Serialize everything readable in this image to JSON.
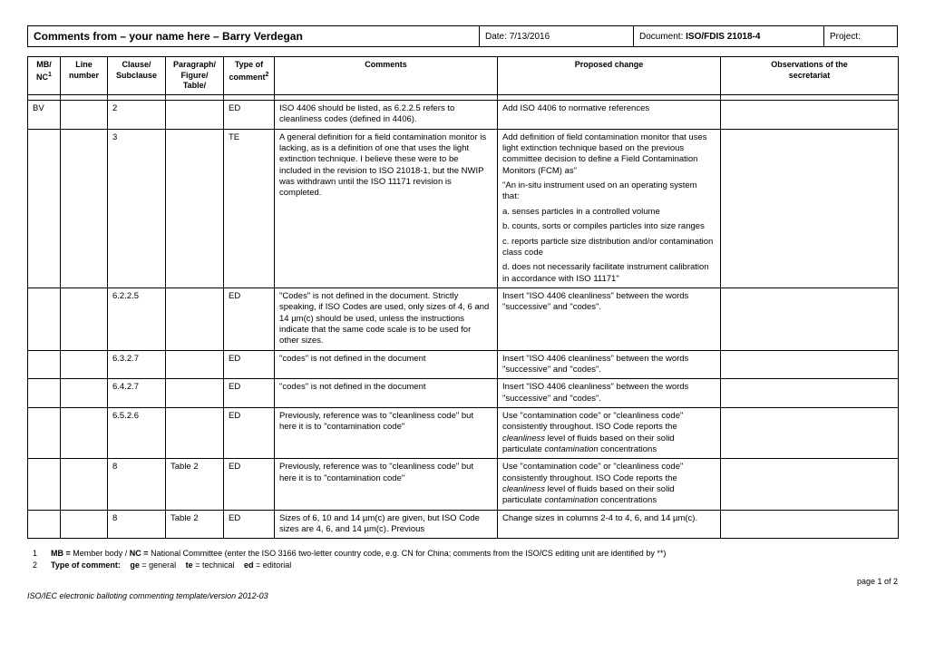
{
  "header": {
    "name_label": "Comments from – your name here – Barry Verdegan",
    "date_label": "Date: ",
    "date_value": "7/13/2016",
    "doc_label": "Document: ",
    "doc_value": "ISO/FDIS 21018-4",
    "project_label": "Project:"
  },
  "columns": {
    "mb": "MB/\nNC",
    "mb_sup": "1",
    "line": "Line number",
    "clause": "Clause/\nSubclause",
    "para": "Paragraph/\nFigure/\nTable/",
    "type": "Type of comment",
    "type_sup": "2",
    "comments": "Comments",
    "proposed": "Proposed change",
    "obs": "Observations of the secretariat"
  },
  "rows": [
    {
      "mb": "BV",
      "line": "",
      "clause": "2",
      "para": "",
      "type": "ED",
      "comment": "ISO 4406 should be listed, as 6.2.2.5 refers to cleanliness codes (defined in 4406).",
      "proposed": "Add ISO 4406 to normative references",
      "obs": ""
    },
    {
      "mb": "",
      "line": "",
      "clause": "3",
      "para": "",
      "type": "TE",
      "comment": "A general definition for a field contamination monitor is lacking, as is a definition of one that uses the light extinction technique.  I believe these were to be included in the revision to ISO 21018-1, but the NWIP was withdrawn until the ISO 11171 revision is completed.",
      "proposed_parts": [
        "Add definition of field contamination monitor that uses light extinction technique based on the previous committee decision to define  a Field Contamination Monitors (FCM) as\"",
        "\"An in-situ instrument used on an operating system that:",
        "a. senses particles in a controlled volume",
        "b. counts, sorts or compiles particles into size ranges",
        "c. reports particle size distribution and/or contamination class code",
        "d. does not necessarily facilitate instrument calibration in accordance with ISO 11171\""
      ],
      "obs": ""
    },
    {
      "mb": "",
      "line": "",
      "clause": "6.2.2.5",
      "para": "",
      "type": "ED",
      "comment": "\"Codes\" is not defined in the document.  Strictly speaking, if ISO Codes are used, only sizes of 4, 6 and 14 µm(c) should be used, unless the instructions indicate that the same code scale is to be used for other sizes.",
      "proposed": "Insert \"ISO 4406 cleanliness\" between the words \"successive\" and \"codes\".",
      "obs": ""
    },
    {
      "mb": "",
      "line": "",
      "clause": "6.3.2.7",
      "para": "",
      "type": "ED",
      "comment": "\"codes\" is not defined in the document",
      "proposed": "Insert \"ISO 4406 cleanliness\" between the words \"successive\" and \"codes\".",
      "obs": ""
    },
    {
      "mb": "",
      "line": "",
      "clause": "6.4.2.7",
      "para": "",
      "type": "ED",
      "comment": "\"codes\" is not defined in the document",
      "proposed": "Insert \"ISO 4406 cleanliness\" between the words \"successive\" and \"codes\".",
      "obs": ""
    },
    {
      "mb": "",
      "line": "",
      "clause": "6.5.2.6",
      "para": "",
      "type": "ED",
      "comment": "Previously, reference was to \"cleanliness code\" but here it is to \"contamination code\"",
      "proposed_html": "Use \"contamination code\" or \"cleanliness code\" consistently throughout.  ISO Code reports the <em>cleanliness</em> level of fluids based on their solid particulate <em>contamination</em> concentrations",
      "obs": ""
    },
    {
      "mb": "",
      "line": "",
      "clause": "8",
      "para": "Table 2",
      "type": "ED",
      "comment": "Previously, reference was to \"cleanliness code\" but here it is to  \"contamination code\"",
      "proposed_html": "Use \"contamination code\" or \"cleanliness code\" consistently throughout.  ISO Code reports the <em>cleanliness</em> level of fluids based on their solid particulate <em>contamination</em> concentrations",
      "obs": ""
    },
    {
      "mb": "",
      "line": "",
      "clause": "8",
      "para": "Table 2",
      "type": "ED",
      "comment": "Sizes of 6, 10 and 14 µm(c) are given, but ISO Code sizes are 4, 6, and 14 µm(c).  Previous",
      "proposed": "Change sizes in columns 2-4 to 4, 6, and 14 µm(c).",
      "obs": ""
    }
  ],
  "footnotes": {
    "f1": "MB = Member body / NC = National Committee (enter the ISO 3166 two-letter country code, e.g. CN for China; comments from the ISO/CS editing unit are identified by **)",
    "f2_a": "Type of comment:",
    "f2_b": "ge = general",
    "f2_c": "te = technical",
    "f2_d": "ed = editorial"
  },
  "page": "page 1 of 2",
  "template": "ISO/IEC  electronic balloting commenting template/version 2012-03"
}
